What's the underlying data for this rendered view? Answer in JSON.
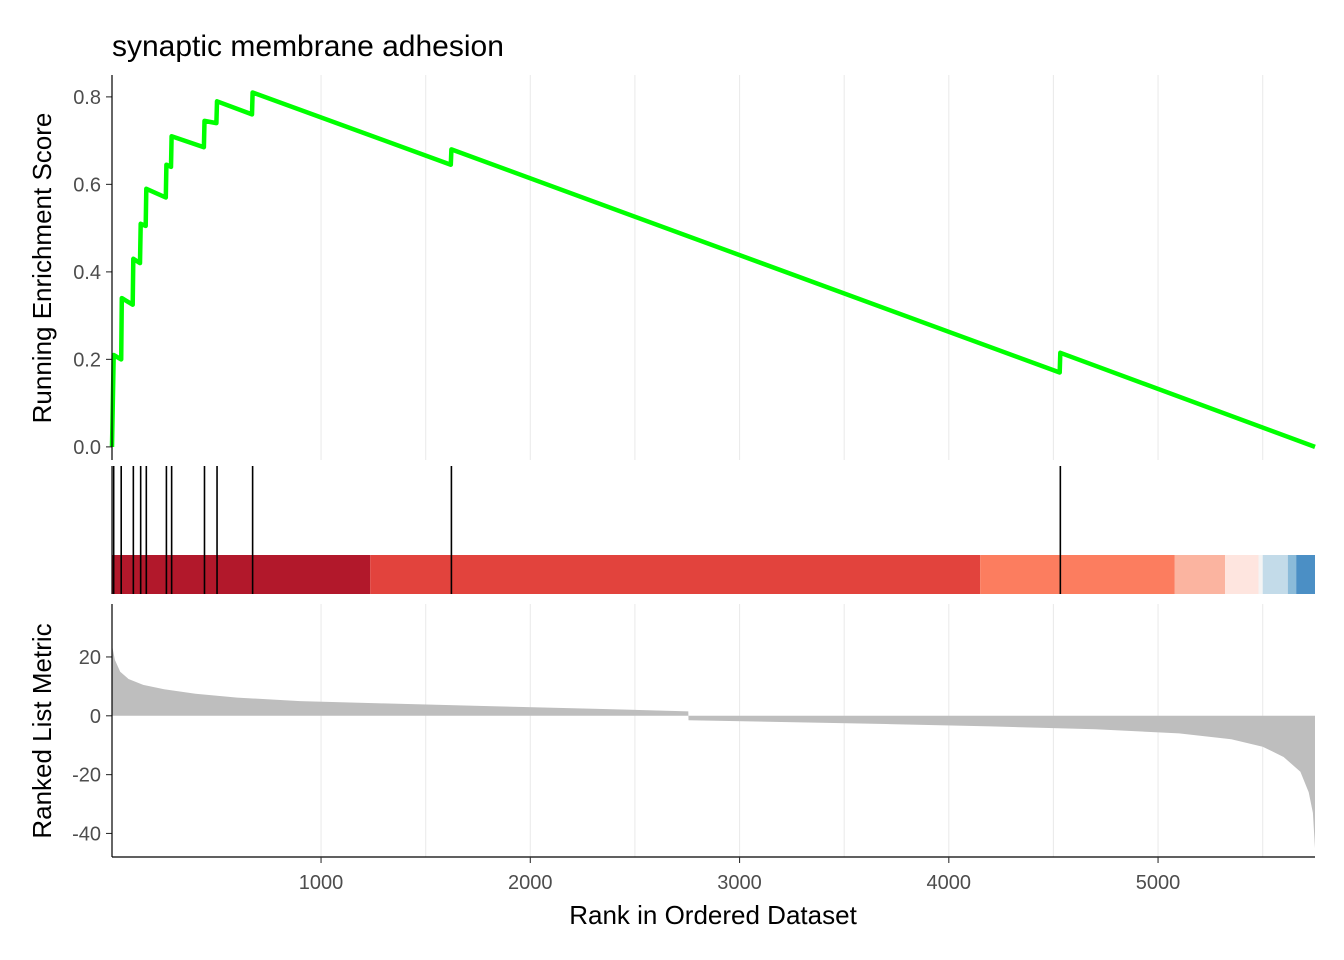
{
  "chart_data": {
    "type": "line",
    "title": "synaptic membrane adhesion",
    "xlabel": "Rank in Ordered Dataset",
    "xlim": [
      1,
      5750
    ],
    "x_ticks": [
      1000,
      2000,
      3000,
      4000,
      5000
    ],
    "grid": true,
    "panels": {
      "enrichment": {
        "ylabel": "Running Enrichment Score",
        "ylim": [
          -0.03,
          0.85
        ],
        "y_ticks": [
          0.0,
          0.2,
          0.4,
          0.6,
          0.8
        ],
        "line_color": "#00ff00",
        "points": [
          [
            1,
            0.0
          ],
          [
            9,
            0.21
          ],
          [
            45,
            0.2
          ],
          [
            48,
            0.34
          ],
          [
            100,
            0.325
          ],
          [
            103,
            0.43
          ],
          [
            135,
            0.42
          ],
          [
            138,
            0.51
          ],
          [
            162,
            0.505
          ],
          [
            165,
            0.59
          ],
          [
            258,
            0.57
          ],
          [
            261,
            0.645
          ],
          [
            283,
            0.64
          ],
          [
            286,
            0.71
          ],
          [
            440,
            0.685
          ],
          [
            443,
            0.745
          ],
          [
            500,
            0.74
          ],
          [
            503,
            0.79
          ],
          [
            670,
            0.76
          ],
          [
            673,
            0.81
          ],
          [
            1620,
            0.645
          ],
          [
            1623,
            0.68
          ],
          [
            4530,
            0.17
          ],
          [
            4533,
            0.215
          ],
          [
            5750,
            0.0
          ]
        ]
      },
      "hits": {
        "positions": [
          9,
          45,
          103,
          138,
          165,
          261,
          286,
          443,
          503,
          673,
          1623,
          4533
        ],
        "color_bands": [
          {
            "from": 1,
            "to": 1235,
            "color": "#b2182b"
          },
          {
            "from": 1235,
            "to": 4150,
            "color": "#e2433d"
          },
          {
            "from": 4150,
            "to": 5080,
            "color": "#fc7d5f"
          },
          {
            "from": 5080,
            "to": 5320,
            "color": "#fbb4a0"
          },
          {
            "from": 5320,
            "to": 5480,
            "color": "#fee5df"
          },
          {
            "from": 5480,
            "to": 5500,
            "color": "#f4f4f4"
          },
          {
            "from": 5500,
            "to": 5620,
            "color": "#c3dbe9"
          },
          {
            "from": 5620,
            "to": 5660,
            "color": "#8bbbd9"
          },
          {
            "from": 5660,
            "to": 5750,
            "color": "#4b8fc5"
          }
        ]
      },
      "ranked_metric": {
        "ylabel": "Ranked List Metric",
        "ylim": [
          -48,
          38
        ],
        "y_ticks": [
          -40,
          -20,
          0,
          20
        ],
        "fill_color": "#bebebe",
        "points": [
          [
            1,
            24
          ],
          [
            15,
            19
          ],
          [
            40,
            15
          ],
          [
            80,
            12.5
          ],
          [
            150,
            10.5
          ],
          [
            250,
            9
          ],
          [
            400,
            7.5
          ],
          [
            600,
            6.2
          ],
          [
            900,
            5
          ],
          [
            1300,
            4.2
          ],
          [
            1800,
            3.3
          ],
          [
            2300,
            2.4
          ],
          [
            2755,
            1.5
          ],
          [
            2756,
            -1.5
          ],
          [
            3200,
            -2.1
          ],
          [
            3700,
            -2.8
          ],
          [
            4200,
            -3.6
          ],
          [
            4700,
            -4.6
          ],
          [
            5100,
            -6
          ],
          [
            5350,
            -8
          ],
          [
            5500,
            -10.5
          ],
          [
            5600,
            -14
          ],
          [
            5680,
            -19
          ],
          [
            5720,
            -26
          ],
          [
            5740,
            -33
          ],
          [
            5750,
            -45
          ]
        ]
      }
    }
  }
}
